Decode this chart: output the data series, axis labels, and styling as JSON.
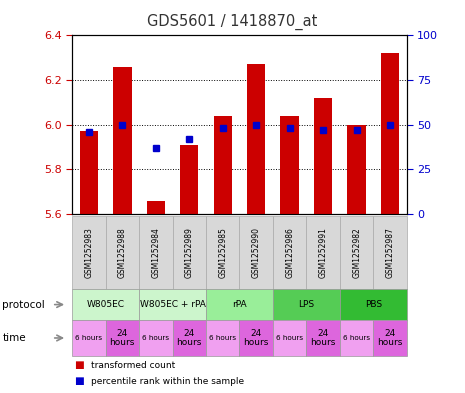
{
  "title": "GDS5601 / 1418870_at",
  "samples": [
    "GSM1252983",
    "GSM1252988",
    "GSM1252984",
    "GSM1252989",
    "GSM1252985",
    "GSM1252990",
    "GSM1252986",
    "GSM1252991",
    "GSM1252982",
    "GSM1252987"
  ],
  "bar_values": [
    5.97,
    6.26,
    5.66,
    5.91,
    6.04,
    6.27,
    6.04,
    6.12,
    6.0,
    6.32
  ],
  "percentile_values": [
    46,
    50,
    37,
    42,
    48,
    50,
    48,
    47,
    47,
    50
  ],
  "ylim_left": [
    5.6,
    6.4
  ],
  "ylim_right": [
    0,
    100
  ],
  "yticks_left": [
    5.6,
    5.8,
    6.0,
    6.2,
    6.4
  ],
  "yticks_right": [
    0,
    25,
    50,
    75,
    100
  ],
  "bar_color": "#cc0000",
  "dot_color": "#0000cc",
  "protocols": [
    {
      "label": "W805EC",
      "start": 0,
      "end": 2,
      "color": "#ccf5cc"
    },
    {
      "label": "W805EC + rPA",
      "start": 2,
      "end": 4,
      "color": "#ccf5cc"
    },
    {
      "label": "rPA",
      "start": 4,
      "end": 6,
      "color": "#99ee99"
    },
    {
      "label": "LPS",
      "start": 6,
      "end": 8,
      "color": "#55cc55"
    },
    {
      "label": "PBS",
      "start": 8,
      "end": 10,
      "color": "#33bb33"
    }
  ],
  "time_color_6": "#f0a0f0",
  "time_color_24": "#dd66dd",
  "legend_items": [
    {
      "label": "transformed count",
      "color": "#cc0000"
    },
    {
      "label": "percentile rank within the sample",
      "color": "#0000cc"
    }
  ],
  "protocol_row_label": "protocol",
  "time_row_label": "time",
  "bar_width": 0.55,
  "ybaseline": 5.6,
  "fig_bg": "#ffffff",
  "plot_bg": "#ffffff",
  "left_tick_color": "#cc0000",
  "right_tick_color": "#0000cc",
  "sample_bg": "#d8d8d8",
  "sample_border": "#aaaaaa"
}
